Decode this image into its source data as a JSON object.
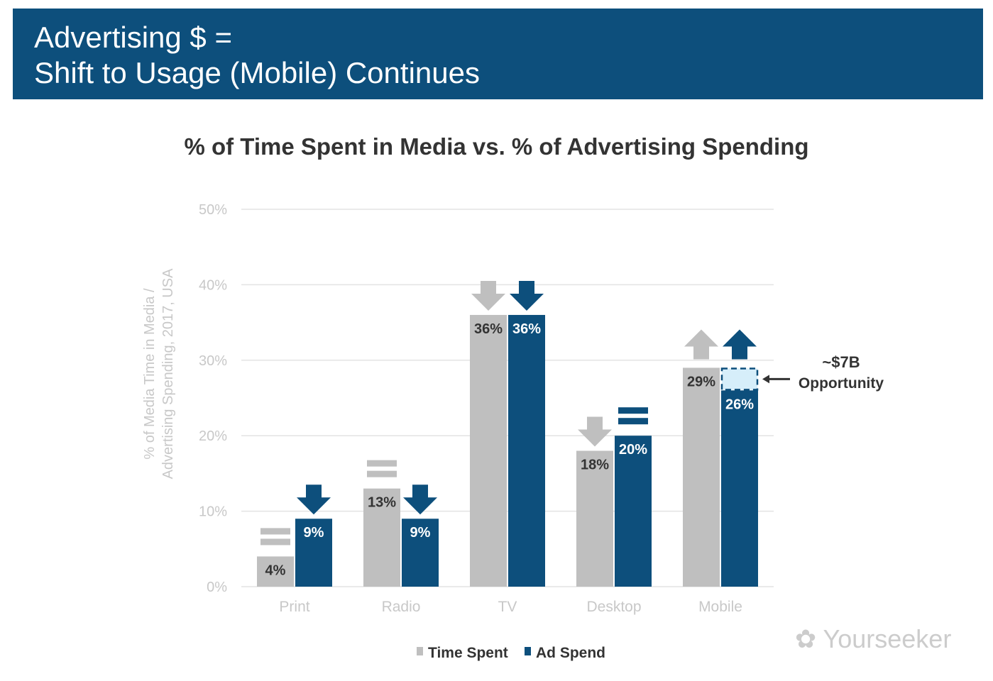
{
  "header": {
    "line1": "Advertising $ =",
    "line2": "Shift to Usage (Mobile) Continues"
  },
  "watermark": "Yourseeker",
  "colors": {
    "header": "#0d4f7c",
    "time_spent": "#bfbfbf",
    "ad_spend": "#0d4f7c",
    "opportunity": "#d6eefa"
  },
  "chart_data": {
    "type": "bar",
    "title": "% of Time Spent in Media vs. % of Advertising Spending",
    "ylabel": "% of Media Time in Media / Advertising Spending, 2017, USA",
    "ylim": [
      0,
      50
    ],
    "yticks": [
      "0%",
      "10%",
      "20%",
      "30%",
      "40%",
      "50%"
    ],
    "grid": true,
    "legend": "bottom",
    "categories": [
      "Print",
      "Radio",
      "TV",
      "Desktop",
      "Mobile"
    ],
    "series": [
      {
        "name": "Time Spent",
        "values": [
          4,
          13,
          36,
          18,
          29
        ],
        "labels": [
          "4%",
          "13%",
          "36%",
          "18%",
          "29%"
        ],
        "trend": [
          "flat",
          "flat",
          "down",
          "down",
          "up"
        ]
      },
      {
        "name": "Ad Spend",
        "values": [
          9,
          9,
          36,
          20,
          26
        ],
        "labels": [
          "9%",
          "9%",
          "36%",
          "20%",
          "26%"
        ],
        "trend": [
          "down",
          "down",
          "down",
          "flat",
          "up"
        ]
      }
    ],
    "annotation": {
      "category": "Mobile",
      "gap_to": 29,
      "line1": "~$7B",
      "line2": "Opportunity"
    }
  }
}
